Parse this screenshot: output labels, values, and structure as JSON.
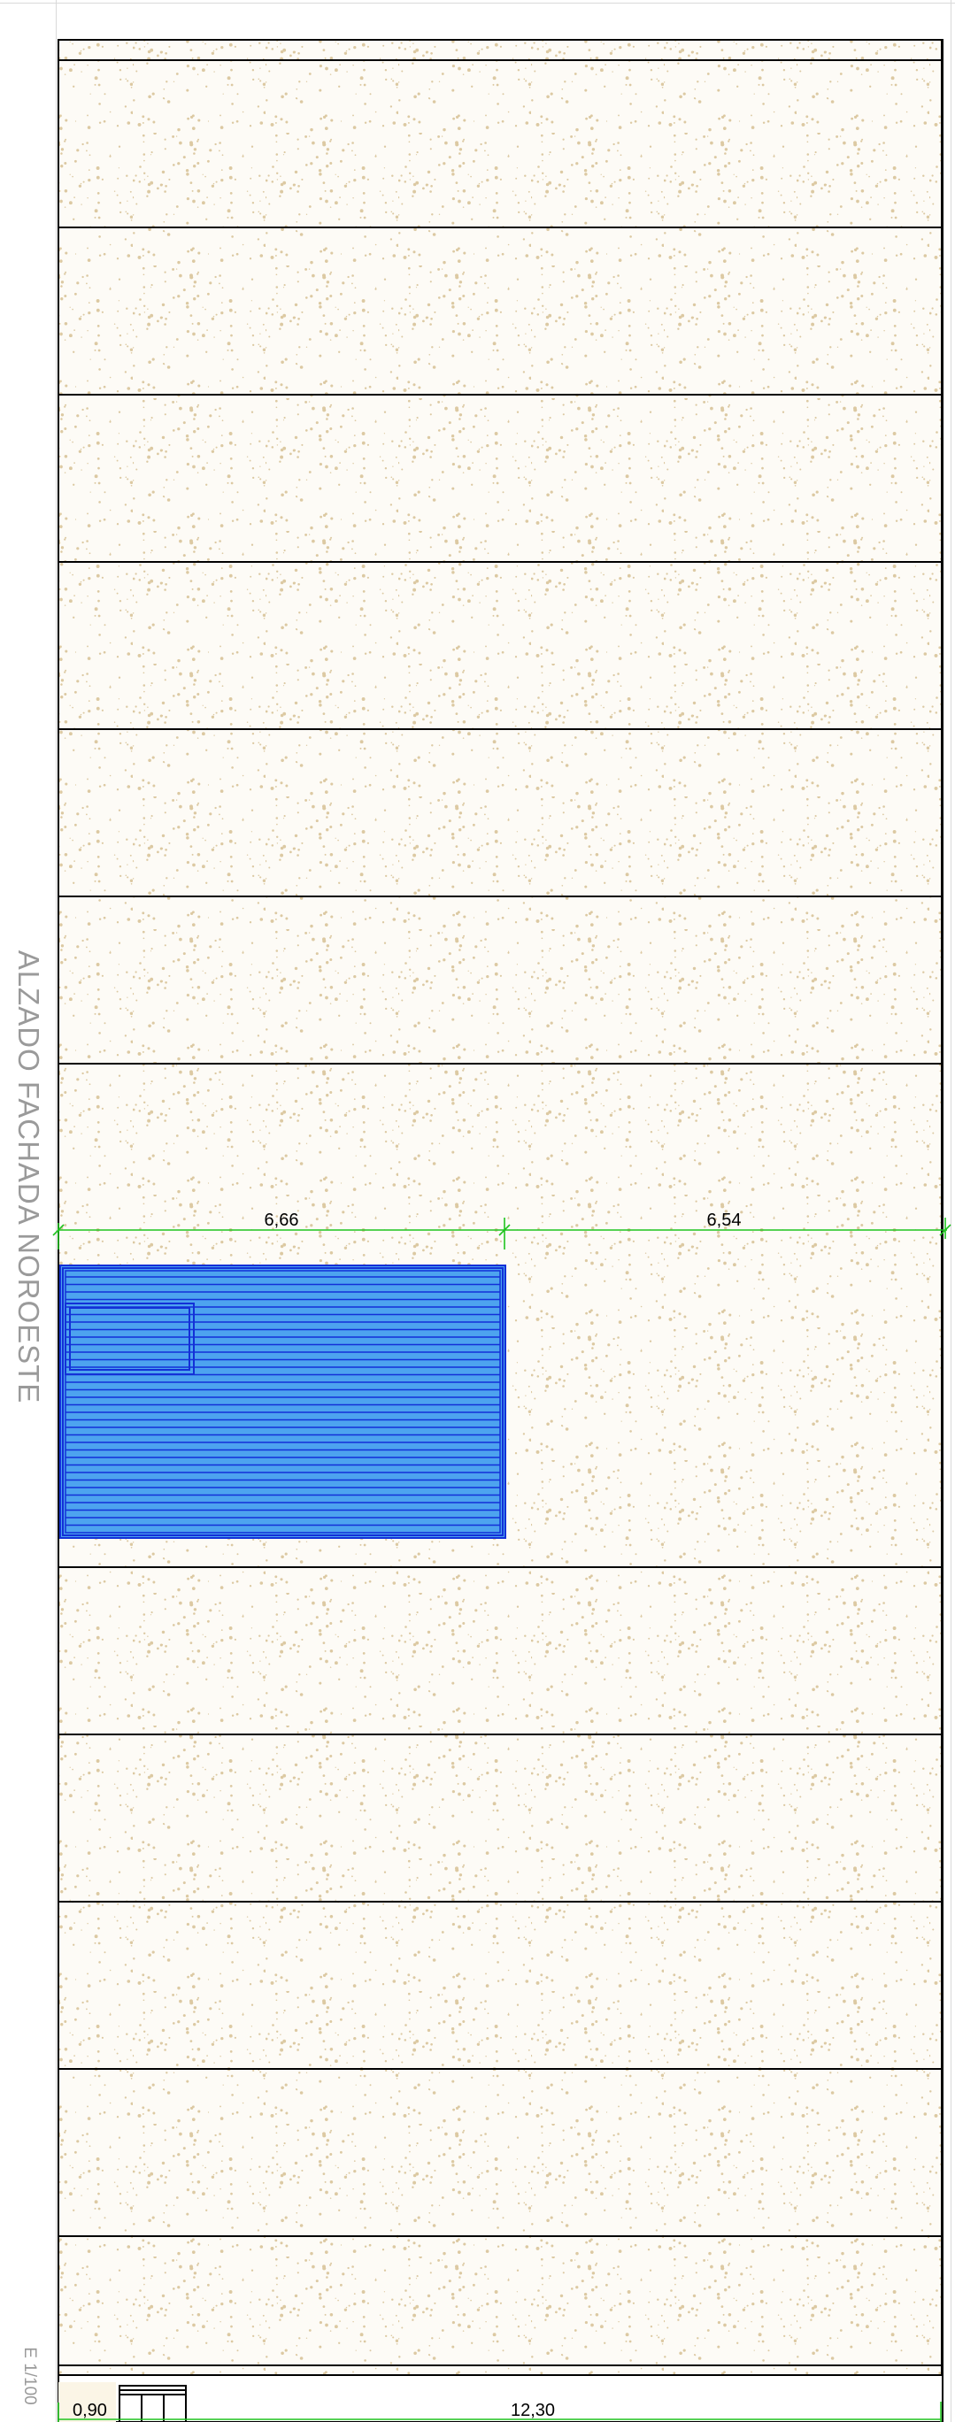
{
  "drawing": {
    "title": "ALZADO FACHADA NOROESTE",
    "scale": "E 1/100",
    "dimensions": {
      "upper_left": "6,66",
      "upper_right": "6,54",
      "lower_left": "0,90",
      "lower_right": "12,30"
    },
    "colors": {
      "stucco": "#fdfbf6",
      "speckle": "#dcc9a2",
      "dimension": "#1fc41f",
      "glazing": "#4da3ef",
      "glazing_line": "#1330d8",
      "outline": "#000000"
    }
  }
}
